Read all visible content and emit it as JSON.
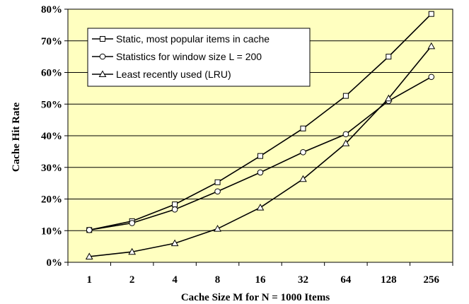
{
  "chart_data": {
    "type": "line",
    "title": "",
    "xlabel": "Cache Size M for N = 1000 Items",
    "ylabel": "Cache Hit Rate",
    "categories": [
      "1",
      "2",
      "4",
      "8",
      "16",
      "32",
      "64",
      "128",
      "256"
    ],
    "y_ticks": [
      "0%",
      "10%",
      "20%",
      "30%",
      "40%",
      "50%",
      "60%",
      "70%",
      "80%"
    ],
    "ylim": [
      0,
      80
    ],
    "grid": "horizontal",
    "legend_position": "top-left",
    "plot_background": "#FFFFC0",
    "series": [
      {
        "name": "Static, most popular items in cache",
        "marker": "square",
        "values": [
          10.2,
          13.0,
          18.3,
          25.3,
          33.6,
          42.3,
          52.6,
          65.0,
          78.5
        ]
      },
      {
        "name": "Statistics for window size L = 200",
        "marker": "circle",
        "values": [
          10.2,
          12.4,
          16.7,
          22.4,
          28.4,
          34.8,
          40.5,
          51.0,
          58.6
        ]
      },
      {
        "name": "Least recently used (LRU)",
        "marker": "triangle",
        "values": [
          1.8,
          3.3,
          6.0,
          10.6,
          17.3,
          26.3,
          37.6,
          51.8,
          68.3
        ]
      }
    ]
  }
}
